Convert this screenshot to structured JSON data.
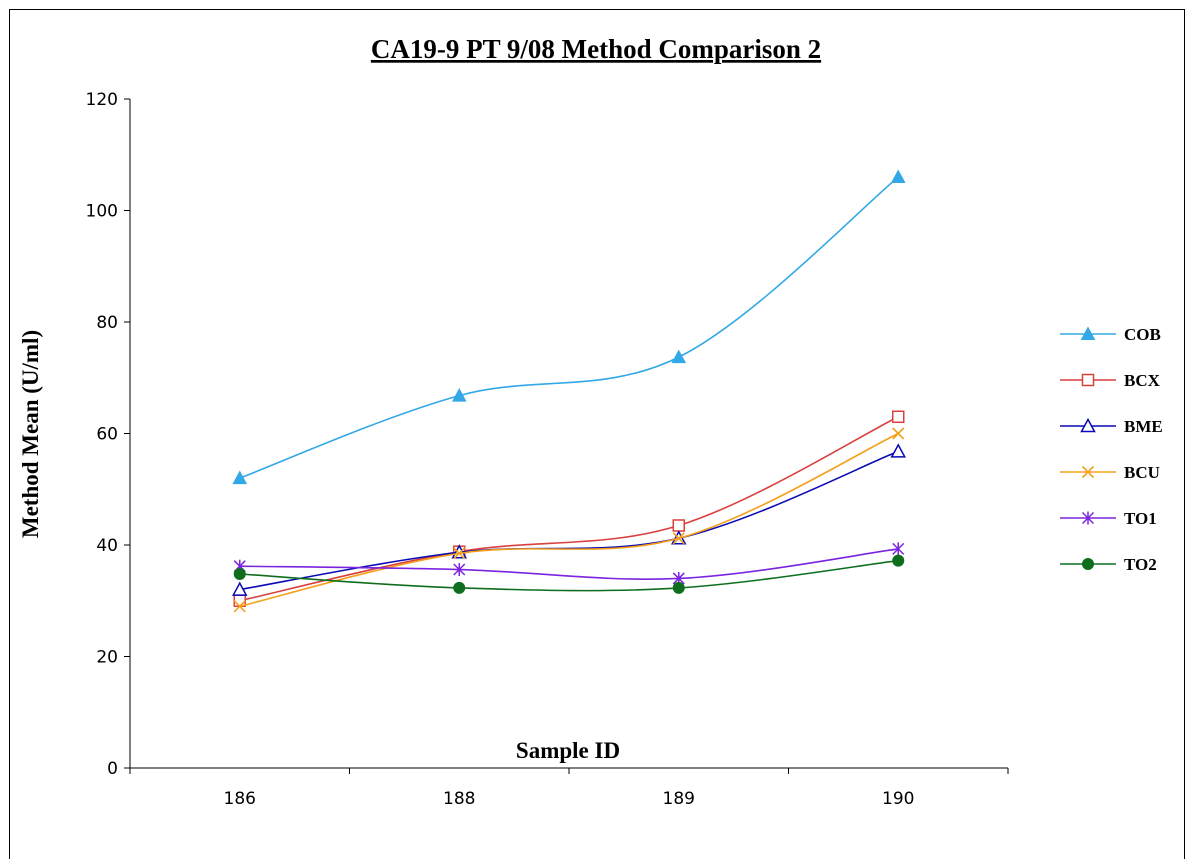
{
  "chart_data": {
    "type": "line",
    "title": "CA19-9 PT 9/08 Method Comparison 2",
    "xlabel": "Sample ID",
    "ylabel": "Method Mean (U/ml)",
    "categories": [
      "186",
      "188",
      "189",
      "190"
    ],
    "ylim": [
      0,
      120
    ],
    "yticks": [
      "0",
      "20",
      "40",
      "60",
      "80",
      "100",
      "120"
    ],
    "grid": false,
    "legend_position": "right",
    "smoothed": true,
    "series": [
      {
        "name": "COB",
        "color": "#33A8E6",
        "marker": "filled-triangle",
        "values": [
          52,
          66.8,
          73.7,
          106
        ]
      },
      {
        "name": "BCX",
        "color": "#D9413F",
        "marker": "open-square",
        "values": [
          30,
          38.8,
          43.5,
          63
        ]
      },
      {
        "name": "BME",
        "color": "#0A0AB4",
        "marker": "open-triangle",
        "values": [
          32,
          38.7,
          41.2,
          56.8
        ]
      },
      {
        "name": "BCU",
        "color": "#F5A01A",
        "marker": "x",
        "values": [
          29,
          38.5,
          41.2,
          60
        ]
      },
      {
        "name": "TO1",
        "color": "#7A24E0",
        "marker": "star",
        "values": [
          36.2,
          35.6,
          34,
          39.3
        ]
      },
      {
        "name": "TO2",
        "color": "#0E6E1E",
        "marker": "filled-circle",
        "values": [
          34.8,
          32.3,
          32.3,
          37.2
        ]
      }
    ]
  }
}
